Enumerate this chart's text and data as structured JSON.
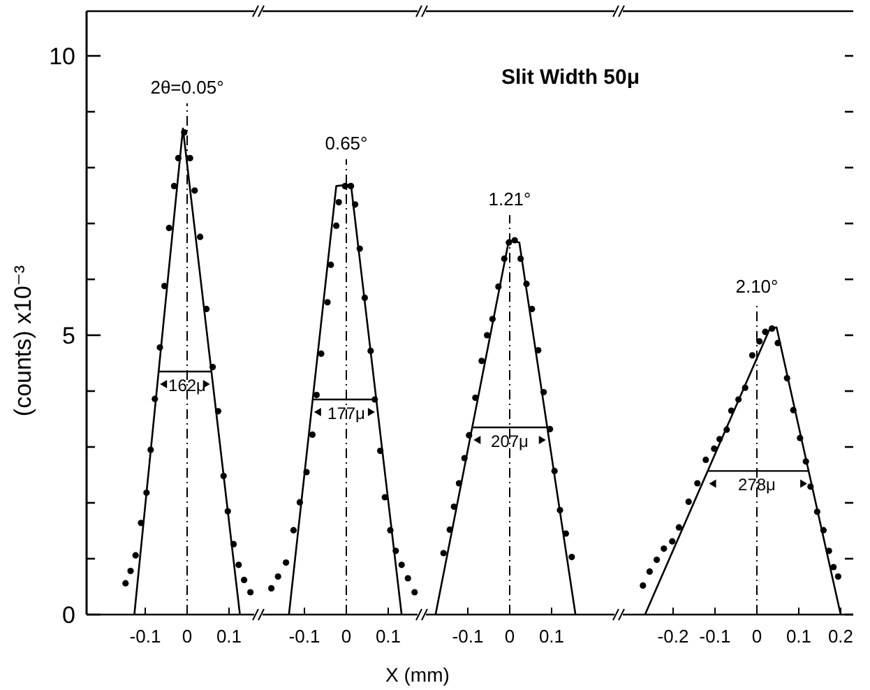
{
  "chart_data": [
    {
      "type": "scatter",
      "ylabel": "(counts) x10⁻³",
      "xlim": [
        -0.24,
        0.16
      ],
      "xticks": [
        -0.1,
        0,
        0.1
      ],
      "ylim": [
        0,
        10.8
      ],
      "yticks": [
        0,
        {
          "value": 1,
          "label": null
        },
        {
          "value": 2,
          "label": null
        },
        {
          "value": 3,
          "label": null
        },
        {
          "value": 4,
          "label": null
        },
        5,
        {
          "value": 6,
          "label": null
        },
        {
          "value": 7,
          "label": null
        },
        {
          "value": 8,
          "label": null
        },
        {
          "value": 9,
          "label": null
        },
        10
      ],
      "series": [
        {
          "color": "#000000",
          "marker": "circle",
          "x": [
            -0.147,
            -0.135,
            -0.123,
            -0.11,
            -0.097,
            -0.087,
            -0.077,
            -0.065,
            -0.054,
            -0.043,
            -0.031,
            -0.021,
            -0.007,
            0.007,
            0.018,
            0.031,
            0.046,
            0.061,
            0.074,
            0.087,
            0.097,
            0.111,
            0.123,
            0.136,
            0.151
          ],
          "values": [
            0.56,
            0.78,
            1.06,
            1.64,
            2.18,
            2.95,
            3.86,
            4.78,
            5.88,
            6.92,
            7.67,
            8.17,
            8.63,
            8.17,
            7.59,
            6.76,
            5.47,
            4.43,
            3.64,
            2.48,
            1.85,
            1.26,
            0.89,
            0.62,
            0.4
          ]
        },
        {
          "type": "line",
          "color": "#000000",
          "line_style": "solid",
          "x": [
            -0.126,
            -0.01,
            0.126
          ],
          "values": [
            0,
            8.7,
            0
          ]
        }
      ],
      "ref_lines": [
        {
          "axis": "x",
          "value": 0,
          "line_style": "dashed",
          "color": "#000000"
        }
      ],
      "annotations": [
        "2θ=0.05°",
        "162μ"
      ]
    },
    {
      "type": "scatter",
      "xlabel": "X (mm)",
      "xlim": [
        -0.2,
        0.17
      ],
      "xticks": [
        -0.1,
        0,
        0.1
      ],
      "ylim": [
        0,
        10.8
      ],
      "tick_labels": "x",
      "series": [
        {
          "color": "#000000",
          "marker": "circle",
          "x": [
            -0.179,
            -0.163,
            -0.144,
            -0.126,
            -0.111,
            -0.095,
            -0.081,
            -0.071,
            -0.06,
            -0.045,
            -0.037,
            -0.024,
            -0.018,
            -0.003,
            0.011,
            0.021,
            0.032,
            0.044,
            0.058,
            0.068,
            0.081,
            0.092,
            0.105,
            0.118,
            0.132,
            0.147,
            0.163
          ],
          "values": [
            0.47,
            0.68,
            0.93,
            1.51,
            2.01,
            2.55,
            3.22,
            3.93,
            4.67,
            5.59,
            6.26,
            6.96,
            7.38,
            7.67,
            7.67,
            7.34,
            6.55,
            5.67,
            4.72,
            3.85,
            2.93,
            2.1,
            1.51,
            1.14,
            0.89,
            0.65,
            0.4
          ]
        },
        {
          "type": "line",
          "color": "#000000",
          "line_style": "solid",
          "x": [
            -0.137,
            -0.024,
            0.011,
            0.132
          ],
          "values": [
            0,
            7.67,
            7.7,
            0
          ]
        }
      ],
      "ref_lines": [
        {
          "axis": "x",
          "value": 0,
          "line_style": "dashed",
          "color": "#000000"
        }
      ],
      "annotations": [
        "0.65°",
        "177μ"
      ]
    },
    {
      "type": "scatter",
      "xlim": [
        -0.2,
        0.25
      ],
      "xticks": [
        -0.1,
        0,
        0.1
      ],
      "ylim": [
        0,
        10.8
      ],
      "tick_labels": "x",
      "series": [
        {
          "color": "#000000",
          "marker": "circle",
          "x": [
            -0.158,
            -0.143,
            -0.133,
            -0.121,
            -0.108,
            -0.097,
            -0.082,
            -0.067,
            -0.054,
            -0.041,
            -0.027,
            -0.013,
            -0.002,
            0.012,
            0.026,
            0.04,
            0.053,
            0.068,
            0.081,
            0.096,
            0.107,
            0.12,
            0.134,
            0.148
          ],
          "values": [
            1.1,
            1.52,
            1.93,
            2.35,
            2.8,
            3.21,
            3.88,
            4.54,
            5.0,
            5.29,
            5.87,
            6.37,
            6.66,
            6.7,
            6.37,
            5.92,
            5.47,
            4.73,
            3.98,
            3.32,
            2.57,
            1.87,
            1.45,
            1.03
          ]
        },
        {
          "type": "line",
          "color": "#000000",
          "line_style": "solid",
          "x": [
            -0.177,
            -0.002,
            0.023,
            0.157
          ],
          "values": [
            0,
            6.7,
            6.66,
            0
          ]
        }
      ],
      "ref_lines": [
        {
          "axis": "x",
          "value": 0,
          "line_style": "dashed",
          "color": "#000000"
        }
      ],
      "annotations": [
        "Slit Width 50μ",
        "1.21°",
        "207μ"
      ]
    },
    {
      "type": "scatter",
      "xlim": [
        -0.32,
        0.23
      ],
      "xticks": [
        -0.2,
        -0.1,
        0,
        0.1,
        0.2
      ],
      "ylim": [
        0,
        10.8
      ],
      "yticks": [
        {
          "value": 0,
          "label": null
        },
        {
          "value": 1,
          "label": null
        },
        {
          "value": 2,
          "label": null
        },
        {
          "value": 3,
          "label": null
        },
        {
          "value": 4,
          "label": null
        },
        {
          "value": 5,
          "label": null
        },
        {
          "value": 6,
          "label": null
        },
        {
          "value": 7,
          "label": null
        },
        {
          "value": 8,
          "label": null
        },
        {
          "value": 9,
          "label": null
        },
        {
          "value": 10,
          "label": null
        }
      ],
      "tick_labels": "x",
      "series": [
        {
          "color": "#000000",
          "marker": "circle",
          "x": [
            -0.272,
            -0.256,
            -0.239,
            -0.222,
            -0.202,
            -0.186,
            -0.163,
            -0.142,
            -0.122,
            -0.102,
            -0.089,
            -0.072,
            -0.061,
            -0.044,
            -0.028,
            -0.011,
            0.006,
            0.02,
            0.036,
            0.05,
            0.072,
            0.087,
            0.103,
            0.117,
            0.128,
            0.144,
            0.159,
            0.172,
            0.183,
            0.194
          ],
          "values": [
            0.52,
            0.77,
            0.98,
            1.18,
            1.31,
            1.56,
            2.02,
            2.35,
            2.77,
            2.97,
            3.14,
            3.31,
            3.65,
            3.85,
            4.06,
            4.64,
            4.89,
            5.06,
            5.12,
            4.86,
            4.23,
            3.66,
            3.16,
            2.74,
            2.29,
            1.84,
            1.51,
            1.14,
            0.85,
            0.68
          ]
        },
        {
          "type": "line",
          "color": "#000000",
          "line_style": "solid",
          "x": [
            -0.267,
            0.031,
            0.047,
            0.2
          ],
          "values": [
            0,
            5.12,
            5.14,
            0
          ]
        }
      ],
      "ref_lines": [
        {
          "axis": "x",
          "value": 0,
          "line_style": "dashed",
          "color": "#000000"
        }
      ],
      "annotations": [
        "2.10°",
        "278μ"
      ]
    }
  ]
}
